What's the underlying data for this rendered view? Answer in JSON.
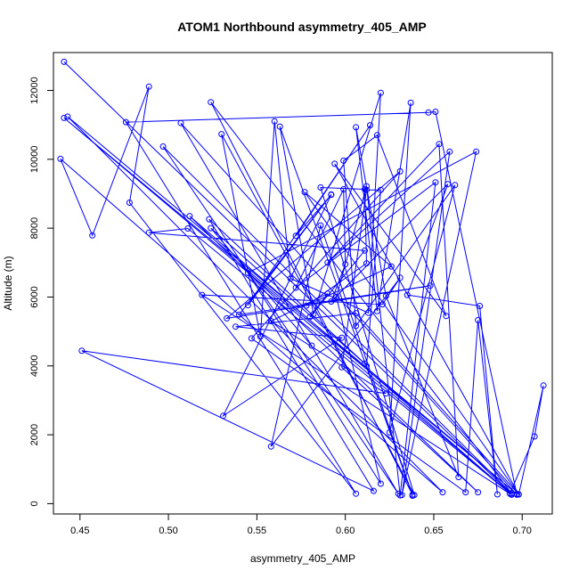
{
  "chart_data": {
    "type": "line",
    "title": "ATOM1 Northbound asymmetry_405_AMP",
    "xlabel": "asymmetry_405_AMP",
    "ylabel": "Altitude (m)",
    "xlim": [
      0.435,
      0.717
    ],
    "ylim": [
      -300,
      13100
    ],
    "x_ticks": [
      0.45,
      0.5,
      0.55,
      0.6,
      0.65,
      0.7
    ],
    "x_tick_labels": [
      "0.45",
      "0.50",
      "0.55",
      "0.60",
      "0.65",
      "0.70"
    ],
    "y_ticks": [
      0,
      2000,
      4000,
      6000,
      8000,
      10000,
      12000
    ],
    "y_tick_labels": [
      "0",
      "2000",
      "4000",
      "6000",
      "8000",
      "10000",
      "12000"
    ],
    "grid": false,
    "series": [
      {
        "color": "#0000ff",
        "marker": "open-circle",
        "points": [
          [
            0.441,
            12830
          ],
          [
            0.694,
            270
          ],
          [
            0.441,
            11200
          ],
          [
            0.697,
            280
          ],
          [
            0.443,
            11240
          ],
          [
            0.655,
            330
          ],
          [
            0.439,
            10010
          ],
          [
            0.457,
            7790
          ],
          [
            0.489,
            12110
          ],
          [
            0.478,
            8740
          ],
          [
            0.606,
            290
          ],
          [
            0.476,
            11080
          ],
          [
            0.647,
            11360
          ],
          [
            0.651,
            11380
          ],
          [
            0.697,
            260
          ],
          [
            0.507,
            11050
          ],
          [
            0.63,
            290
          ],
          [
            0.497,
            10370
          ],
          [
            0.694,
            300
          ],
          [
            0.524,
            11660
          ],
          [
            0.638,
            260
          ],
          [
            0.563,
            10950
          ],
          [
            0.582,
            5500
          ],
          [
            0.62,
            11930
          ],
          [
            0.613,
            5540
          ],
          [
            0.569,
            6540
          ],
          [
            0.56,
            11100
          ],
          [
            0.552,
            4850
          ],
          [
            0.53,
            10730
          ],
          [
            0.639,
            250
          ],
          [
            0.586,
            9180
          ],
          [
            0.611,
            9130
          ],
          [
            0.612,
            6980
          ],
          [
            0.578,
            5750
          ],
          [
            0.626,
            6890
          ],
          [
            0.577,
            9050
          ],
          [
            0.698,
            270
          ],
          [
            0.594,
            9870
          ],
          [
            0.657,
            5450
          ],
          [
            0.618,
            10700
          ],
          [
            0.599,
            9960
          ],
          [
            0.606,
            5160
          ],
          [
            0.662,
            9250
          ],
          [
            0.625,
            2070
          ],
          [
            0.637,
            11640
          ],
          [
            0.618,
            5590
          ],
          [
            0.606,
            10930
          ],
          [
            0.623,
            6030
          ],
          [
            0.664,
            770
          ],
          [
            0.653,
            10440
          ],
          [
            0.59,
            7000
          ],
          [
            0.659,
            10220
          ],
          [
            0.632,
            250
          ],
          [
            0.674,
            10220
          ],
          [
            0.545,
            6700
          ],
          [
            0.62,
            580
          ],
          [
            0.595,
            6000
          ],
          [
            0.612,
            9220
          ],
          [
            0.631,
            240
          ],
          [
            0.651,
            9330
          ],
          [
            0.572,
            6270
          ],
          [
            0.599,
            9130
          ],
          [
            0.6,
            6950
          ],
          [
            0.592,
            5870
          ],
          [
            0.658,
            9280
          ],
          [
            0.635,
            6060
          ],
          [
            0.676,
            5740
          ],
          [
            0.686,
            270
          ],
          [
            0.675,
            5330
          ],
          [
            0.668,
            330
          ],
          [
            0.547,
            4800
          ],
          [
            0.631,
            9650
          ],
          [
            0.533,
            5380
          ],
          [
            0.648,
            6330
          ],
          [
            0.54,
            5490
          ],
          [
            0.592,
            8980
          ],
          [
            0.545,
            5760
          ],
          [
            0.614,
            10990
          ],
          [
            0.572,
            7780
          ],
          [
            0.592,
            8970
          ],
          [
            0.531,
            2550
          ],
          [
            0.598,
            4820
          ],
          [
            0.538,
            5140
          ],
          [
            0.606,
            5530
          ],
          [
            0.698,
            270
          ],
          [
            0.712,
            3430
          ],
          [
            0.707,
            1950
          ],
          [
            0.693,
            290
          ],
          [
            0.519,
            6060
          ],
          [
            0.621,
            5790
          ],
          [
            0.631,
            6560
          ],
          [
            0.558,
            1660
          ],
          [
            0.586,
            8080
          ],
          [
            0.638,
            230
          ],
          [
            0.612,
            4000
          ],
          [
            0.62,
            9110
          ],
          [
            0.612,
            9110
          ],
          [
            0.598,
            3960
          ],
          [
            0.675,
            330
          ],
          [
            0.512,
            8350
          ],
          [
            0.694,
            260
          ],
          [
            0.511,
            7990
          ],
          [
            0.489,
            7870
          ],
          [
            0.611,
            7350
          ],
          [
            0.58,
            5420
          ],
          [
            0.59,
            6100
          ],
          [
            0.558,
            5300
          ],
          [
            0.623,
            3200
          ],
          [
            0.451,
            4440
          ],
          [
            0.616,
            370
          ],
          [
            0.523,
            8260
          ],
          [
            0.611,
            4070
          ],
          [
            0.524,
            8000
          ],
          [
            0.581,
            4590
          ]
        ]
      }
    ]
  }
}
